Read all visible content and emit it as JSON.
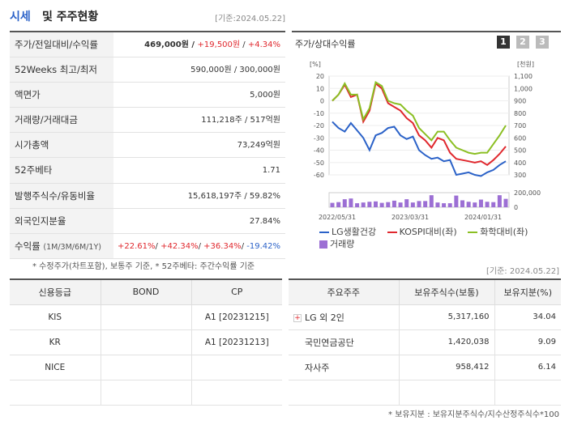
{
  "header": {
    "title_a": "시세",
    "title_b": "및 주주현황",
    "date": "[기준:2024.05.22]"
  },
  "quote_rows": [
    {
      "label": "주가/전일대비/수익률",
      "val_main": "469,000원 / ",
      "val_red1": "+19,500원",
      "val_sep": " / ",
      "val_red2": "+4.34%"
    },
    {
      "label": "52Weeks 최고/최저",
      "value": "590,000원 / 300,000원"
    },
    {
      "label": "액면가",
      "value": "5,000원"
    },
    {
      "label": "거래량/거래대금",
      "value": "111,218주 / 517억원"
    },
    {
      "label": "시가총액",
      "value": "73,249억원"
    },
    {
      "label": "52주베타",
      "value": "1.71"
    },
    {
      "label": "발행주식수/유동비율",
      "value": "15,618,197주 / 59.82%"
    },
    {
      "label": "외국인지분율",
      "value": "27.84%"
    },
    {
      "label": "수익률",
      "label_sub": "(1M/3M/6M/1Y)",
      "r1": "+22.61%",
      "r2": "+42.34%",
      "r3": "+36.34%",
      "r4": "-19.42%"
    }
  ],
  "note1": "* 수정주가(차트포함), 보통주 기준, * 52주베타: 주간수익률 기준",
  "chart_panel": {
    "title": "주가/상대수익률",
    "pages": [
      "1",
      "2",
      "3"
    ]
  },
  "chart_data": {
    "type": "line",
    "left_axis_unit": "[%]",
    "right_axis_unit": "[천원]",
    "left_ticks": [
      "20",
      "10",
      "0",
      "-10",
      "-20",
      "-30",
      "-40",
      "-50",
      "-60"
    ],
    "right_ticks": [
      "1,100",
      "1,000",
      "900",
      "800",
      "700",
      "600",
      "500",
      "400",
      "300"
    ],
    "volume_ticks": [
      "200,000",
      "0"
    ],
    "x_labels": [
      "2022/05/31",
      "2023/03/31",
      "2024/01/31"
    ],
    "ylim_left": [
      -60,
      20
    ],
    "ylim_right": [
      300,
      1100
    ],
    "ylim_volume": [
      0,
      200000
    ],
    "series": [
      {
        "name": "LG생활건강",
        "color": "#2b62c8",
        "axis": "right",
        "values": [
          730,
          680,
          650,
          720,
          660,
          600,
          500,
          620,
          640,
          680,
          690,
          620,
          590,
          610,
          500,
          460,
          430,
          440,
          410,
          420,
          300,
          310,
          320,
          300,
          290,
          320,
          340,
          380,
          410
        ]
      },
      {
        "name": "KOSPI대비(좌)",
        "color": "#e0282e",
        "axis": "left",
        "values": [
          0,
          5,
          13,
          3,
          5,
          -17,
          -8,
          14,
          10,
          -2,
          -5,
          -8,
          -14,
          -18,
          -28,
          -32,
          -38,
          -30,
          -32,
          -42,
          -47,
          -48,
          -49,
          -50,
          -49,
          -52,
          -48,
          -43,
          -37
        ]
      },
      {
        "name": "화학대비(좌)",
        "color": "#8bbf23",
        "axis": "left",
        "values": [
          0,
          5,
          14,
          5,
          5,
          -15,
          -6,
          15,
          12,
          0,
          -2,
          -3,
          -8,
          -12,
          -22,
          -27,
          -32,
          -25,
          -25,
          -32,
          -38,
          -40,
          -42,
          -43,
          -42,
          -42,
          -35,
          -28,
          -20
        ]
      }
    ],
    "volume": {
      "name": "거래량",
      "color": "#9c6fd4",
      "values": [
        60000,
        70000,
        110000,
        120000,
        55000,
        65000,
        75000,
        80000,
        60000,
        70000,
        90000,
        65000,
        110000,
        65000,
        85000,
        85000,
        165000,
        65000,
        55000,
        55000,
        160000,
        95000,
        75000,
        65000,
        105000,
        75000,
        70000,
        165000,
        115000
      ]
    }
  },
  "date2": "[기준: 2024.05.22]",
  "credit": {
    "headers": [
      "신용등급",
      "BOND",
      "CP"
    ],
    "rows": [
      {
        "agency": "KIS",
        "bond": "",
        "cp": "A1 [20231215]"
      },
      {
        "agency": "KR",
        "bond": "",
        "cp": "A1 [20231213]"
      },
      {
        "agency": "NICE",
        "bond": "",
        "cp": ""
      },
      {
        "agency": "",
        "bond": "",
        "cp": ""
      }
    ]
  },
  "holders": {
    "headers": [
      "주요주주",
      "보유주식수(보통)",
      "보유지분(%)"
    ],
    "rows": [
      {
        "name": "LG 외 2인",
        "expand": "+",
        "shares": "5,317,160",
        "pct": "34.04"
      },
      {
        "name": "국민연금공단",
        "expand": "",
        "shares": "1,420,038",
        "pct": "9.09"
      },
      {
        "name": "자사주",
        "expand": "",
        "shares": "958,412",
        "pct": "6.14"
      },
      {
        "name": "",
        "expand": "",
        "shares": "",
        "pct": ""
      }
    ]
  },
  "note2": "* 보유지분 : 보유지분주식수/지수산정주식수*100"
}
